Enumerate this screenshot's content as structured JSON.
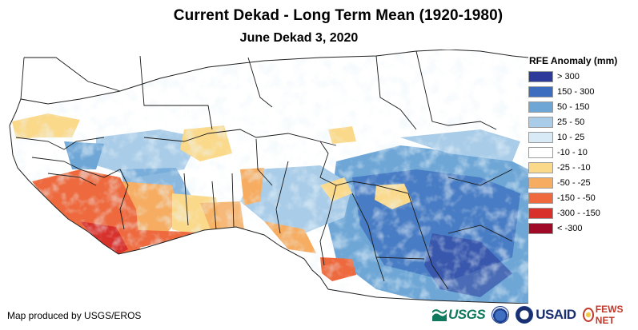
{
  "title": "Current Dekad - Long Term Mean (1920-1980)",
  "subtitle": "June Dekad 3, 2020",
  "legend": {
    "title": "RFE Anomaly (mm)",
    "items": [
      {
        "label": "> 300",
        "color": "#2e3a9a"
      },
      {
        "label": "150 - 300",
        "color": "#3c6dbe"
      },
      {
        "label": "50 - 150",
        "color": "#6ea6d6"
      },
      {
        "label": "25 - 50",
        "color": "#a9cce8"
      },
      {
        "label": "10 - 25",
        "color": "#d8eaf5"
      },
      {
        "label": "-10 - 10",
        "color": "#ffffff"
      },
      {
        "label": "-25 - -10",
        "color": "#fbd98a"
      },
      {
        "label": "-50 - -25",
        "color": "#f6ad62"
      },
      {
        "label": "-150 - -50",
        "color": "#ee6a3e"
      },
      {
        "label": "-300 - -150",
        "color": "#d8302a"
      },
      {
        "label": "< -300",
        "color": "#a00a26"
      }
    ]
  },
  "credit": "Map produced by USGS/EROS",
  "logos": {
    "usgs": "USGS",
    "usaid": "USAID",
    "fews": "FEWS NET"
  }
}
